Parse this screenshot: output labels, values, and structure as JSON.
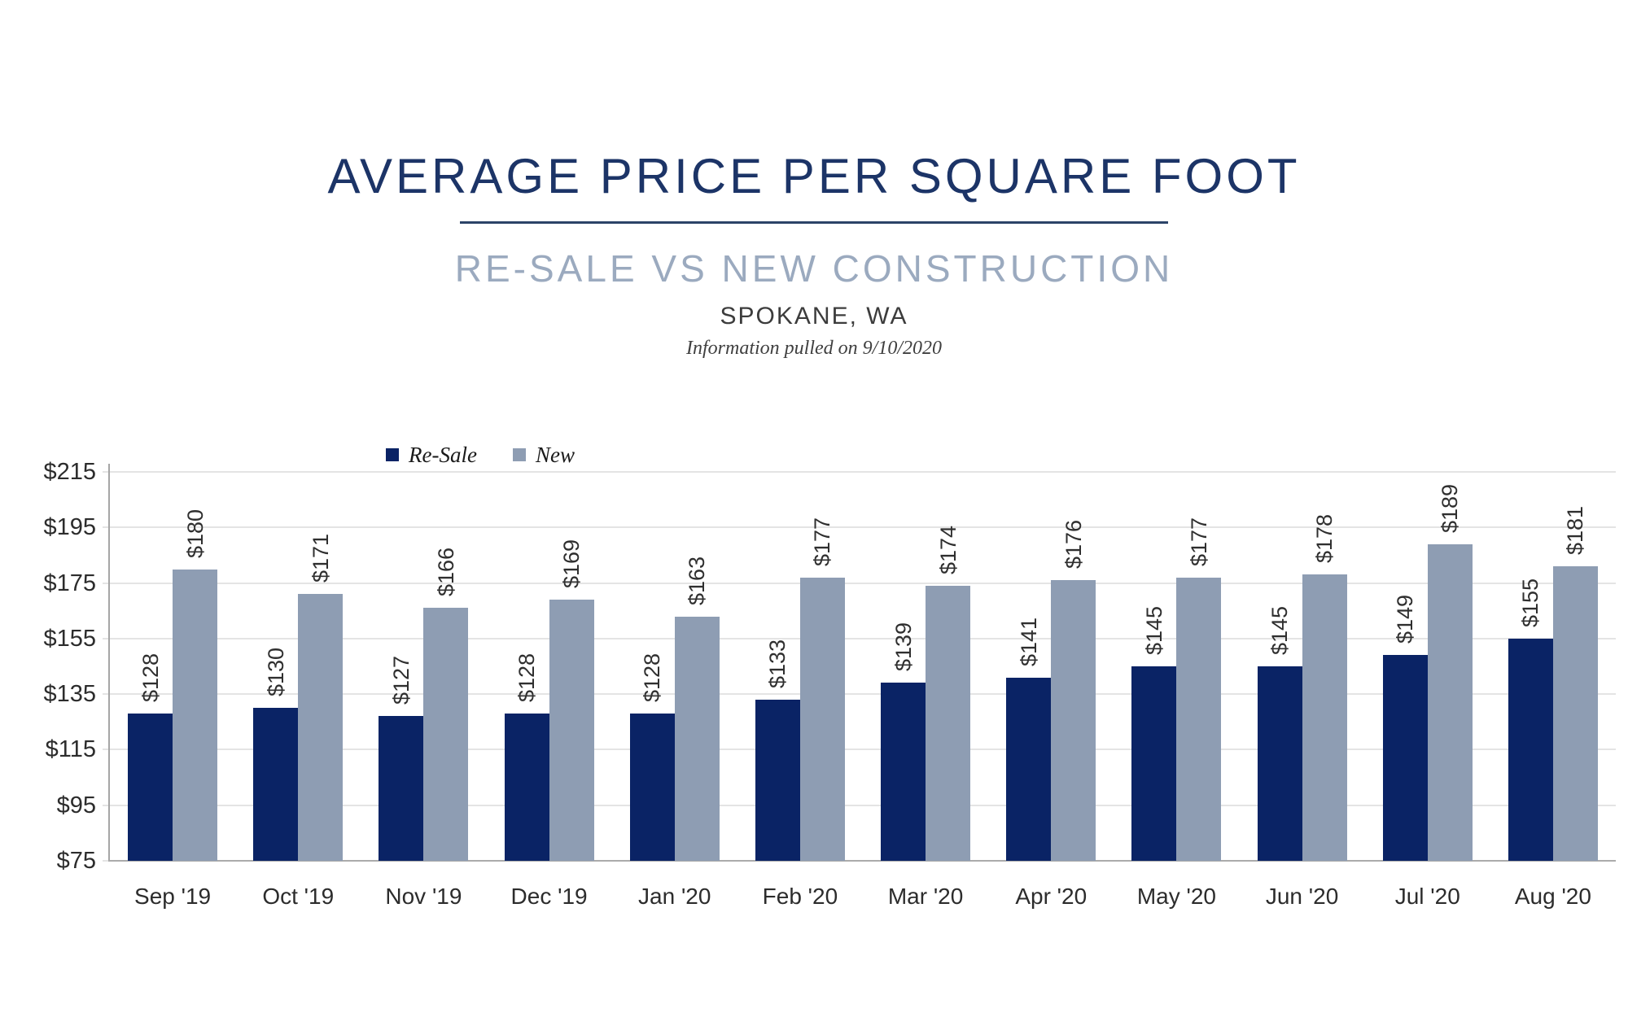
{
  "chart_data": {
    "type": "bar",
    "title": "AVERAGE PRICE PER SQUARE FOOT",
    "subtitle": "RE-SALE VS NEW CONSTRUCTION",
    "location": "SPOKANE, WA",
    "note": "Information pulled on 9/10/2020",
    "categories": [
      "Sep '19",
      "Oct '19",
      "Nov '19",
      "Dec '19",
      "Jan '20",
      "Feb '20",
      "Mar '20",
      "Apr '20",
      "May '20",
      "Jun '20",
      "Jul '20",
      "Aug '20"
    ],
    "series": [
      {
        "name": "Re-Sale",
        "color": "#0a2365",
        "values": [
          128,
          130,
          127,
          128,
          128,
          133,
          139,
          141,
          145,
          145,
          149,
          155
        ]
      },
      {
        "name": "New",
        "color": "#8e9db3",
        "values": [
          180,
          171,
          166,
          169,
          163,
          177,
          174,
          176,
          177,
          178,
          189,
          181
        ]
      }
    ],
    "value_prefix": "$",
    "xlabel": "",
    "ylabel": "",
    "ylim": [
      75,
      215
    ],
    "yticks": [
      215,
      195,
      175,
      155,
      135,
      115,
      95,
      75
    ],
    "grid": true,
    "legend_position": "top-left-above-plot",
    "colors": {
      "title": "#1c3467",
      "subtitle": "#9baabf",
      "resale_bar": "#0a2365",
      "new_bar": "#8e9db3",
      "gridline": "#e4e4e4",
      "axis_line": "#a6a6a6"
    }
  }
}
